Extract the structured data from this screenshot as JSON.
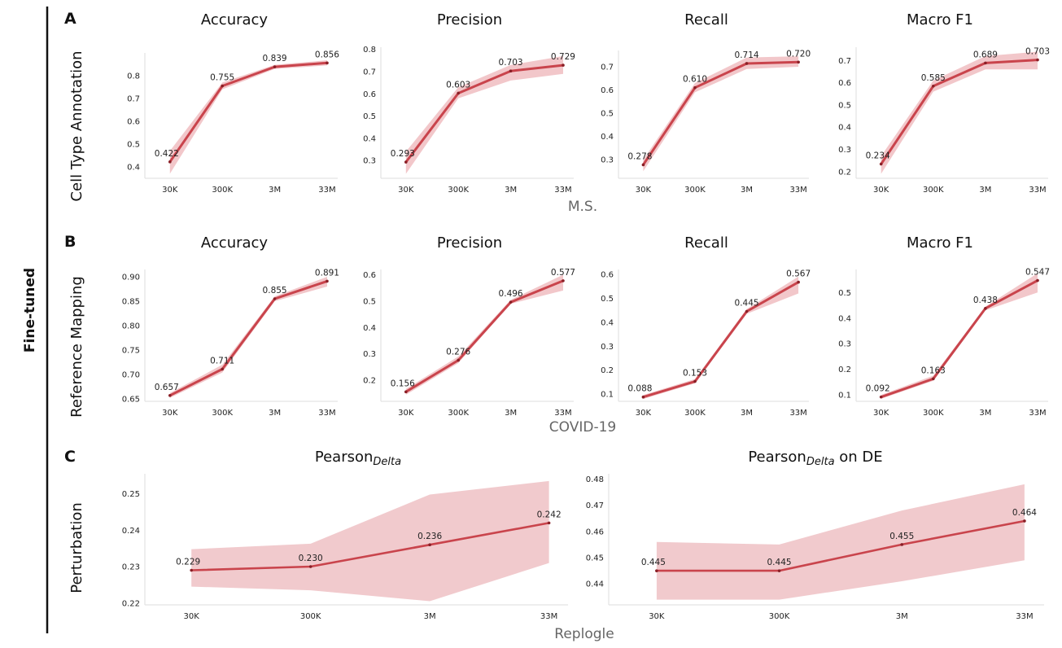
{
  "figure": {
    "side_label": "Fine-tuned",
    "colors": {
      "line": "#c9444c",
      "band": "#e8999f",
      "band_c": "#e8a6ab",
      "axis": "#dddddd"
    },
    "rows": [
      {
        "letter": "A",
        "label": "Cell Type Annotation",
        "section": "M.S."
      },
      {
        "letter": "B",
        "label": "Reference Mapping",
        "section": "COVID-19"
      },
      {
        "letter": "C",
        "label": "Perturbation",
        "section": "Replogle"
      }
    ]
  },
  "chart_data": [
    {
      "id": "a-accuracy",
      "row": 0,
      "type": "line",
      "title": "Accuracy",
      "categories": [
        "30K",
        "300K",
        "3M",
        "33M"
      ],
      "values": [
        0.422,
        0.755,
        0.839,
        0.856
      ],
      "labels": [
        "0.422",
        "0.755",
        "0.839",
        "0.856"
      ],
      "band_low": [
        0.37,
        0.74,
        0.83,
        0.845
      ],
      "band_high": [
        0.47,
        0.77,
        0.848,
        0.868
      ],
      "ylim": [
        0.35,
        0.9
      ],
      "yticks": [
        0.4,
        0.5,
        0.6,
        0.7,
        0.8
      ],
      "ytick_labels": [
        "0.4",
        "0.5",
        "0.6",
        "0.7",
        "0.8"
      ]
    },
    {
      "id": "a-precision",
      "row": 0,
      "type": "line",
      "title": "Precision",
      "categories": [
        "30K",
        "300K",
        "3M",
        "33M"
      ],
      "values": [
        0.293,
        0.603,
        0.703,
        0.729
      ],
      "labels": [
        "0.293",
        "0.603",
        "0.703",
        "0.729"
      ],
      "band_low": [
        0.24,
        0.58,
        0.66,
        0.69
      ],
      "band_high": [
        0.34,
        0.63,
        0.73,
        0.77
      ],
      "ylim": [
        0.22,
        0.81
      ],
      "yticks": [
        0.3,
        0.4,
        0.5,
        0.6,
        0.7,
        0.8
      ],
      "ytick_labels": [
        "0.3",
        "0.4",
        "0.5",
        "0.6",
        "0.7",
        "0.8"
      ]
    },
    {
      "id": "a-recall",
      "row": 0,
      "type": "line",
      "title": "Recall",
      "categories": [
        "30K",
        "300K",
        "3M",
        "33M"
      ],
      "values": [
        0.278,
        0.61,
        0.714,
        0.72
      ],
      "labels": [
        "0.278",
        "0.610",
        "0.714",
        "0.720"
      ],
      "band_low": [
        0.25,
        0.59,
        0.69,
        0.7
      ],
      "band_high": [
        0.3,
        0.63,
        0.74,
        0.745
      ],
      "ylim": [
        0.22,
        0.77
      ],
      "yticks": [
        0.3,
        0.4,
        0.5,
        0.6,
        0.7
      ],
      "ytick_labels": [
        "0.3",
        "0.4",
        "0.5",
        "0.6",
        "0.7"
      ]
    },
    {
      "id": "a-macrof1",
      "row": 0,
      "type": "line",
      "title": "Macro F1",
      "categories": [
        "30K",
        "300K",
        "3M",
        "33M"
      ],
      "values": [
        0.234,
        0.585,
        0.689,
        0.703
      ],
      "labels": [
        "0.234",
        "0.585",
        "0.689",
        "0.703"
      ],
      "band_low": [
        0.19,
        0.56,
        0.66,
        0.66
      ],
      "band_high": [
        0.27,
        0.61,
        0.72,
        0.74
      ],
      "ylim": [
        0.17,
        0.76
      ],
      "yticks": [
        0.2,
        0.3,
        0.4,
        0.5,
        0.6,
        0.7
      ],
      "ytick_labels": [
        "0.2",
        "0.3",
        "0.4",
        "0.5",
        "0.6",
        "0.7"
      ]
    },
    {
      "id": "b-accuracy",
      "row": 1,
      "type": "line",
      "title": "Accuracy",
      "categories": [
        "30K",
        "300K",
        "3M",
        "33M"
      ],
      "values": [
        0.657,
        0.711,
        0.855,
        0.891
      ],
      "labels": [
        "0.657",
        "0.711",
        "0.855",
        "0.891"
      ],
      "band_low": [
        0.652,
        0.704,
        0.85,
        0.88
      ],
      "band_high": [
        0.662,
        0.72,
        0.86,
        0.9
      ],
      "ylim": [
        0.645,
        0.915
      ],
      "yticks": [
        0.65,
        0.7,
        0.75,
        0.8,
        0.85,
        0.9
      ],
      "ytick_labels": [
        "0.65",
        "0.70",
        "0.75",
        "0.80",
        "0.85",
        "0.90"
      ]
    },
    {
      "id": "b-precision",
      "row": 1,
      "type": "line",
      "title": "Precision",
      "categories": [
        "30K",
        "300K",
        "3M",
        "33M"
      ],
      "values": [
        0.156,
        0.276,
        0.496,
        0.577
      ],
      "labels": [
        "0.156",
        "0.276",
        "0.496",
        "0.577"
      ],
      "band_low": [
        0.145,
        0.265,
        0.49,
        0.54
      ],
      "band_high": [
        0.167,
        0.29,
        0.505,
        0.6
      ],
      "ylim": [
        0.12,
        0.62
      ],
      "yticks": [
        0.2,
        0.3,
        0.4,
        0.5,
        0.6
      ],
      "ytick_labels": [
        "0.2",
        "0.3",
        "0.4",
        "0.5",
        "0.6"
      ]
    },
    {
      "id": "b-recall",
      "row": 1,
      "type": "line",
      "title": "Recall",
      "categories": [
        "30K",
        "300K",
        "3M",
        "33M"
      ],
      "values": [
        0.088,
        0.153,
        0.445,
        0.567
      ],
      "labels": [
        "0.088",
        "0.153",
        "0.445",
        "0.567"
      ],
      "band_low": [
        0.08,
        0.145,
        0.435,
        0.52
      ],
      "band_high": [
        0.096,
        0.163,
        0.455,
        0.59
      ],
      "ylim": [
        0.07,
        0.62
      ],
      "yticks": [
        0.1,
        0.2,
        0.3,
        0.4,
        0.5,
        0.6
      ],
      "ytick_labels": [
        "0.1",
        "0.2",
        "0.3",
        "0.4",
        "0.5",
        "0.6"
      ]
    },
    {
      "id": "b-macrof1",
      "row": 1,
      "type": "line",
      "title": "Macro F1",
      "categories": [
        "30K",
        "300K",
        "3M",
        "33M"
      ],
      "values": [
        0.092,
        0.163,
        0.438,
        0.547
      ],
      "labels": [
        "0.092",
        "0.163",
        "0.438",
        "0.547"
      ],
      "band_low": [
        0.085,
        0.155,
        0.43,
        0.5
      ],
      "band_high": [
        0.1,
        0.175,
        0.445,
        0.575
      ],
      "ylim": [
        0.075,
        0.59
      ],
      "yticks": [
        0.1,
        0.2,
        0.3,
        0.4,
        0.5
      ],
      "ytick_labels": [
        "0.1",
        "0.2",
        "0.3",
        "0.4",
        "0.5"
      ]
    },
    {
      "id": "c-pearson-delta",
      "row": 2,
      "type": "line",
      "title_main": "Pearson",
      "title_sub": "Delta",
      "title_tail": "",
      "categories": [
        "30K",
        "300K",
        "3M",
        "33M"
      ],
      "values": [
        0.229,
        0.23,
        0.236,
        0.242
      ],
      "labels": [
        "0.229",
        "0.230",
        "0.236",
        "0.242"
      ],
      "band_low": [
        0.2245,
        0.2235,
        0.2205,
        0.231
      ],
      "band_high": [
        0.2348,
        0.2363,
        0.2498,
        0.2535
      ],
      "ylim": [
        0.2195,
        0.2555
      ],
      "yticks": [
        0.22,
        0.23,
        0.24,
        0.25
      ],
      "ytick_labels": [
        "0.22",
        "0.23",
        "0.24",
        "0.25"
      ]
    },
    {
      "id": "c-pearson-delta-de",
      "row": 2,
      "type": "line",
      "title_main": "Pearson",
      "title_sub": "Delta",
      "title_tail": " on DE",
      "categories": [
        "30K",
        "300K",
        "3M",
        "33M"
      ],
      "values": [
        0.445,
        0.445,
        0.455,
        0.464
      ],
      "labels": [
        "0.445",
        "0.445",
        "0.455",
        "0.464"
      ],
      "band_low": [
        0.434,
        0.434,
        0.441,
        0.449
      ],
      "band_high": [
        0.456,
        0.455,
        0.468,
        0.478
      ],
      "ylim": [
        0.432,
        0.482
      ],
      "yticks": [
        0.44,
        0.45,
        0.46,
        0.47,
        0.48
      ],
      "ytick_labels": [
        "0.44",
        "0.45",
        "0.46",
        "0.47",
        "0.48"
      ]
    }
  ]
}
